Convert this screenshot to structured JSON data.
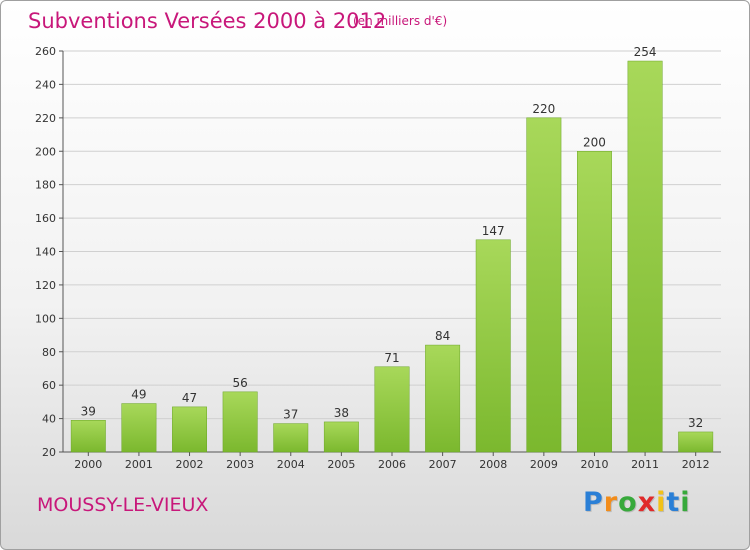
{
  "chart_data": {
    "type": "bar",
    "title": "Subventions Versées 2000 à 2012",
    "subtitle": "(en milliers d'€)",
    "categories": [
      "2000",
      "2001",
      "2002",
      "2003",
      "2004",
      "2005",
      "2006",
      "2007",
      "2008",
      "2009",
      "2010",
      "2011",
      "2012"
    ],
    "values": [
      39,
      49,
      47,
      56,
      37,
      38,
      71,
      84,
      147,
      220,
      200,
      254,
      32
    ],
    "ylim": [
      20,
      260
    ],
    "yticks": [
      20,
      40,
      60,
      80,
      100,
      120,
      140,
      160,
      180,
      200,
      220,
      240,
      260
    ],
    "grid": true,
    "bar_color": "#7bb82e",
    "bar_color_light": "#a8d85a"
  },
  "footer": {
    "commune": "MOUSSY-LE-VIEUX",
    "logo": [
      "P",
      "r",
      "o",
      "x",
      "i",
      "t",
      "i"
    ],
    "logo_colors": [
      "#2a7fd6",
      "#f28c1a",
      "#37a93b",
      "#e02a2a",
      "#f2c21a",
      "#2a7fd6",
      "#37a93b"
    ]
  },
  "colors": {
    "accent": "#c8177a"
  }
}
